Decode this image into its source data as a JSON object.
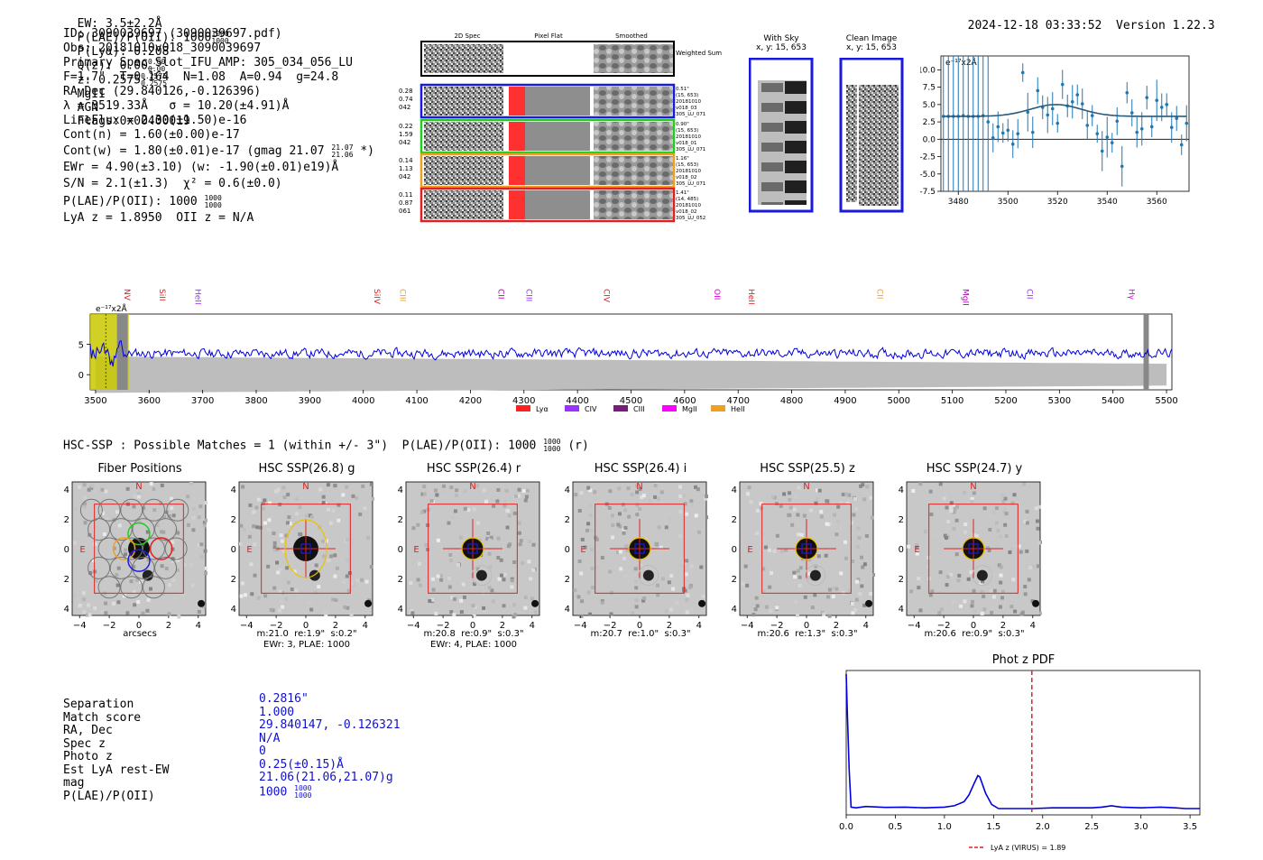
{
  "header": {
    "ew": "EW: 3.5±2.2Å",
    "plae_label": "P(LAE)/P(OII): 1000",
    "plae_up": "1000",
    "plae_dn": "1000",
    "plya": "P(Lyα): 0.208",
    "qz": "Q(z): 0.00",
    "qz_up": "0.00",
    "qz_dn": "0.00",
    "z": "z: 0.2575",
    "z_up": "0.2575",
    "z_dn": "0.2575",
    "line": "MgII",
    "agn": "AGN",
    "flags": "Flags:0x00400019",
    "datetime": "2024-12-18 03:33:52",
    "version": "Version 1.22.3"
  },
  "info": {
    "id": "ID: 3090039697 (3090039697.pdf)",
    "obs": "Obs: 20181010v018_3090039697",
    "primary": "Primary Spec_Slot_IFU_AMP: 305_034_056_LU",
    "params": "F=1.7\"  T=0.164  N=1.08  A=0.94  g=24.8",
    "radec": "RA,Dec (29.840126,-0.126396)",
    "lambda": "λ = 3519.33Å   σ = 10.20(±4.91)Å",
    "lineflux": "LineFlux = 2.30(±1.50)e-16",
    "contn": "Cont(n) = 1.60(±0.00)e-17",
    "contw": "Cont(w) = 1.80(±0.01)e-17 (gmag 21.07",
    "contw_up": "21.07",
    "contw_dn": "21.06",
    "contw_end": "*)",
    "ewr": "EWr = 4.90(±3.10) (w: -1.90(±0.01)e19)Å",
    "sn": "S/N = 2.1(±1.3)  χ² = 0.6(±0.0)",
    "plae": "P(LAE)/P(OII): 1000",
    "plae_up": "1000",
    "plae_dn": "1000",
    "lyaz": "LyA z = 1.8950  OII z = N/A"
  },
  "cutouts": {
    "col1": "2D Spec",
    "col2": "Pixel Flat",
    "col3": "Smoothed",
    "weighted": "Weighted Sum",
    "rows": [
      {
        "l1": "0.28",
        "l2": "0.74",
        "l3": "042",
        "r1": "0.51\"",
        "r2": "(15, 653)",
        "r3": "20181010",
        "r4": "v018_03",
        "r5": "305_LU_071",
        "color": "#1a1adc"
      },
      {
        "l1": "0.22",
        "l2": "1.59",
        "l3": "042",
        "r1": "0.90\"",
        "r2": "(15, 653)",
        "r3": "20181010",
        "r4": "v018_01",
        "r5": "305_LU_071",
        "color": "#22cc22"
      },
      {
        "l1": "0.14",
        "l2": "1.13",
        "l3": "042",
        "r1": "1.16\"",
        "r2": "(15, 653)",
        "r3": "20181010",
        "r4": "v018_02",
        "r5": "305_LU_071",
        "color": "#f0a020"
      },
      {
        "l1": "0.11",
        "l2": "0.87",
        "l3": "061",
        "r1": "1.41\"",
        "r2": "(14, 485)",
        "r3": "20181010",
        "r4": "v018_02",
        "r5": "305_LU_052",
        "color": "#e02020"
      }
    ],
    "withsky": "With Sky",
    "withsky_xy": "x, y: 15, 653",
    "clean": "Clean Image",
    "clean_xy": "x, y: 15, 653"
  },
  "hsc": {
    "title": "HSC-SSP : Possible Matches = 1 (within +/- 3\")  P(LAE)/P(OII): 1000",
    "title_up": "1000",
    "title_dn": "1000",
    "title_end": "(r)",
    "panels": [
      {
        "title": "Fiber Positions",
        "cap1": "arcsecs",
        "cap2": ""
      },
      {
        "title": "HSC SSP(26.8) g",
        "cap1": "m:21.0  re:1.9\"  s:0.2\"",
        "cap2": "EWr: 3, PLAE: 1000"
      },
      {
        "title": "HSC SSP(26.4) r",
        "cap1": "m:20.8  re:0.9\"  s:0.3\"",
        "cap2": "EWr: 4, PLAE: 1000"
      },
      {
        "title": "HSC SSP(26.4) i",
        "cap1": "m:20.7  re:1.0\"  s:0.3\"",
        "cap2": ""
      },
      {
        "title": "HSC SSP(25.5) z",
        "cap1": "m:20.6  re:1.3\"  s:0.3\"",
        "cap2": ""
      },
      {
        "title": "HSC SSP(24.7) y",
        "cap1": "m:20.6  re:0.9\"  s:0.3\"",
        "cap2": ""
      }
    ],
    "north": "N",
    "east": "E"
  },
  "match_table": {
    "labels": [
      "Separation",
      "Match score",
      "RA, Dec",
      "Spec z",
      "Photo z",
      "Est LyA rest-EW",
      "mag",
      "P(LAE)/P(OII)"
    ],
    "values": [
      "0.2816\"",
      "1.000",
      "29.840147, -0.126321",
      "N/A",
      "0",
      "0.25(±0.15)Å",
      "21.06(21.06,21.07)g",
      "1000"
    ],
    "plae_up": "1000",
    "plae_dn": "1000"
  },
  "chart_data": [
    {
      "type": "line",
      "title": "",
      "ylabel": "e⁻¹⁷x2Å",
      "xlim": [
        3473,
        3573
      ],
      "ylim": [
        -7.5,
        12
      ],
      "xticks": [
        3480,
        3500,
        3520,
        3540,
        3560
      ],
      "yticks": [
        -7.5,
        -5.0,
        -2.5,
        0.0,
        2.5,
        5.0,
        7.5,
        10.0
      ],
      "series": [
        {
          "name": "gaussian fit",
          "model": {
            "center": 3519.33,
            "sigma": 10.2,
            "amplitude": 1.7,
            "baseline": 3.3
          }
        }
      ],
      "points": [
        {
          "x": 3474,
          "y": 3.3
        },
        {
          "x": 3476,
          "y": 3.3
        },
        {
          "x": 3478,
          "y": 3.3
        },
        {
          "x": 3480,
          "y": 3.3
        },
        {
          "x": 3482,
          "y": 3.4
        },
        {
          "x": 3484,
          "y": 3.3
        },
        {
          "x": 3486,
          "y": 3.3
        },
        {
          "x": 3488,
          "y": 3.3
        },
        {
          "x": 3490,
          "y": 3.4
        },
        {
          "x": 3492,
          "y": 2.5
        },
        {
          "x": 3494,
          "y": 0.2
        },
        {
          "x": 3496,
          "y": 1.8
        },
        {
          "x": 3498,
          "y": 0.9
        },
        {
          "x": 3500,
          "y": 1.3
        },
        {
          "x": 3502,
          "y": -0.7
        },
        {
          "x": 3504,
          "y": 0.8
        },
        {
          "x": 3506,
          "y": 9.6
        },
        {
          "x": 3508,
          "y": 3.9
        },
        {
          "x": 3510,
          "y": 1.0
        },
        {
          "x": 3512,
          "y": 7.0
        },
        {
          "x": 3514,
          "y": 4.6
        },
        {
          "x": 3516,
          "y": 3.5
        },
        {
          "x": 3518,
          "y": 4.4
        },
        {
          "x": 3520,
          "y": 2.3
        },
        {
          "x": 3522,
          "y": 7.9
        },
        {
          "x": 3524,
          "y": 4.8
        },
        {
          "x": 3526,
          "y": 5.4
        },
        {
          "x": 3528,
          "y": 6.4
        },
        {
          "x": 3530,
          "y": 5.1
        },
        {
          "x": 3532,
          "y": 2.0
        },
        {
          "x": 3534,
          "y": 3.4
        },
        {
          "x": 3536,
          "y": 0.8
        },
        {
          "x": 3538,
          "y": -1.7
        },
        {
          "x": 3540,
          "y": 0.3
        },
        {
          "x": 3542,
          "y": -0.5
        },
        {
          "x": 3544,
          "y": 2.6
        },
        {
          "x": 3546,
          "y": -3.9
        },
        {
          "x": 3548,
          "y": 6.7
        },
        {
          "x": 3550,
          "y": 3.8
        },
        {
          "x": 3552,
          "y": 1.0
        },
        {
          "x": 3554,
          "y": 1.5
        },
        {
          "x": 3556,
          "y": 6.0
        },
        {
          "x": 3558,
          "y": 1.8
        },
        {
          "x": 3560,
          "y": 5.6
        },
        {
          "x": 3562,
          "y": 4.6
        },
        {
          "x": 3564,
          "y": 5.0
        },
        {
          "x": 3566,
          "y": 1.7
        },
        {
          "x": 3568,
          "y": 3.0
        },
        {
          "x": 3570,
          "y": -0.8
        },
        {
          "x": 3572,
          "y": 2.3
        }
      ]
    },
    {
      "type": "line",
      "title": "",
      "ylabel": "e⁻¹⁷x2Å",
      "xlim": [
        3490,
        5510
      ],
      "ylim": [
        -2.5,
        10
      ],
      "xticks": [
        3500,
        3600,
        3700,
        3800,
        3900,
        4000,
        4100,
        4200,
        4300,
        4400,
        4500,
        4600,
        4700,
        4800,
        4900,
        5000,
        5100,
        5200,
        5300,
        5400,
        5500
      ],
      "yticks": [
        0,
        5
      ],
      "series": [
        {
          "name": "spectrum",
          "mean": 3.5,
          "scatter": 1.2
        },
        {
          "name": "error band",
          "half_width_range": [
            3.0,
            1.8
          ]
        }
      ],
      "lines": [
        {
          "label": "NV",
          "x": 3584,
          "color": "#e02020"
        },
        {
          "label": "SiII",
          "x": 3650,
          "color": "#e02020"
        },
        {
          "label": "HeII",
          "x": 3717,
          "color": "#9b30ff"
        },
        {
          "label": "SiIV",
          "x": 4051,
          "color": "#e02020"
        },
        {
          "label": "CIII",
          "x": 4099,
          "color": "#f0a020"
        },
        {
          "label": "CII",
          "x": 4283,
          "color": "#b000b0"
        },
        {
          "label": "CIII",
          "x": 4335,
          "color": "#9b30ff"
        },
        {
          "label": "CIV",
          "x": 4480,
          "color": "#e02020"
        },
        {
          "label": "OII",
          "x": 4686,
          "color": "#e000e0"
        },
        {
          "label": "HeII",
          "x": 4750,
          "color": "#e02020"
        },
        {
          "label": "CII",
          "x": 4990,
          "color": "#f0a020"
        },
        {
          "label": "MgII",
          "x": 5150,
          "color": "#b000b0"
        },
        {
          "label": "CII",
          "x": 5270,
          "color": "#9b30ff"
        },
        {
          "label": "Hγ",
          "x": 5460,
          "color": "#e000e0"
        }
      ],
      "legend": [
        {
          "label": "Lyα",
          "color": "#ff2020"
        },
        {
          "label": "CIV",
          "color": "#9b30ff"
        },
        {
          "label": "CIII",
          "color": "#7a1a7a"
        },
        {
          "label": "MgII",
          "color": "#ff00ff"
        },
        {
          "label": "HeII",
          "color": "#f0a020"
        }
      ]
    },
    {
      "type": "line",
      "title": "Phot z PDF",
      "xlim": [
        0,
        3.6
      ],
      "xticks": [
        0.0,
        0.5,
        1.0,
        1.5,
        2.0,
        2.5,
        3.0,
        3.5
      ],
      "vline": {
        "x": 1.89,
        "label": "LyA z (VIRUS) = 1.89",
        "color": "#e02020"
      },
      "series": [
        {
          "name": "pdf",
          "x": [
            0.0,
            0.01,
            0.03,
            0.05,
            0.1,
            0.2,
            0.4,
            0.6,
            0.8,
            1.0,
            1.1,
            1.2,
            1.25,
            1.3,
            1.34,
            1.36,
            1.38,
            1.42,
            1.48,
            1.55,
            1.7,
            1.9,
            2.1,
            2.3,
            2.5,
            2.6,
            2.7,
            2.8,
            3.0,
            3.2,
            3.35,
            3.45,
            3.6
          ],
          "y": [
            1.0,
            0.75,
            0.3,
            0.03,
            0.025,
            0.035,
            0.028,
            0.03,
            0.025,
            0.03,
            0.04,
            0.07,
            0.12,
            0.2,
            0.26,
            0.25,
            0.21,
            0.13,
            0.05,
            0.02,
            0.02,
            0.02,
            0.025,
            0.025,
            0.025,
            0.03,
            0.04,
            0.03,
            0.025,
            0.03,
            0.025,
            0.02,
            0.02
          ]
        }
      ]
    }
  ]
}
